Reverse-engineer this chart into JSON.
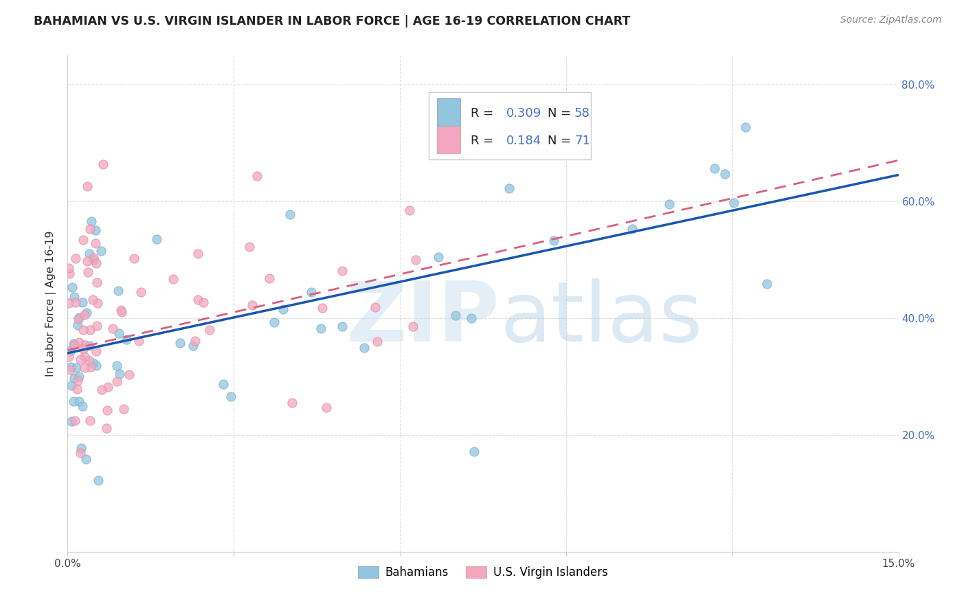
{
  "title": "BAHAMIAN VS U.S. VIRGIN ISLANDER IN LABOR FORCE | AGE 16-19 CORRELATION CHART",
  "source": "Source: ZipAtlas.com",
  "ylabel": "In Labor Force | Age 16-19",
  "xlim": [
    0.0,
    0.15
  ],
  "ylim": [
    0.0,
    0.85
  ],
  "legend_label1": "Bahamians",
  "legend_label2": "U.S. Virgin Islanders",
  "R1": 0.309,
  "N1": 58,
  "R2": 0.184,
  "N2": 71,
  "color_blue": "#92c5de",
  "color_pink": "#f4a6c0",
  "line_blue": "#1a56b0",
  "line_pink": "#d9607a",
  "background_color": "#ffffff",
  "grid_color": "#dddddd",
  "right_tick_color": "#4472c4"
}
